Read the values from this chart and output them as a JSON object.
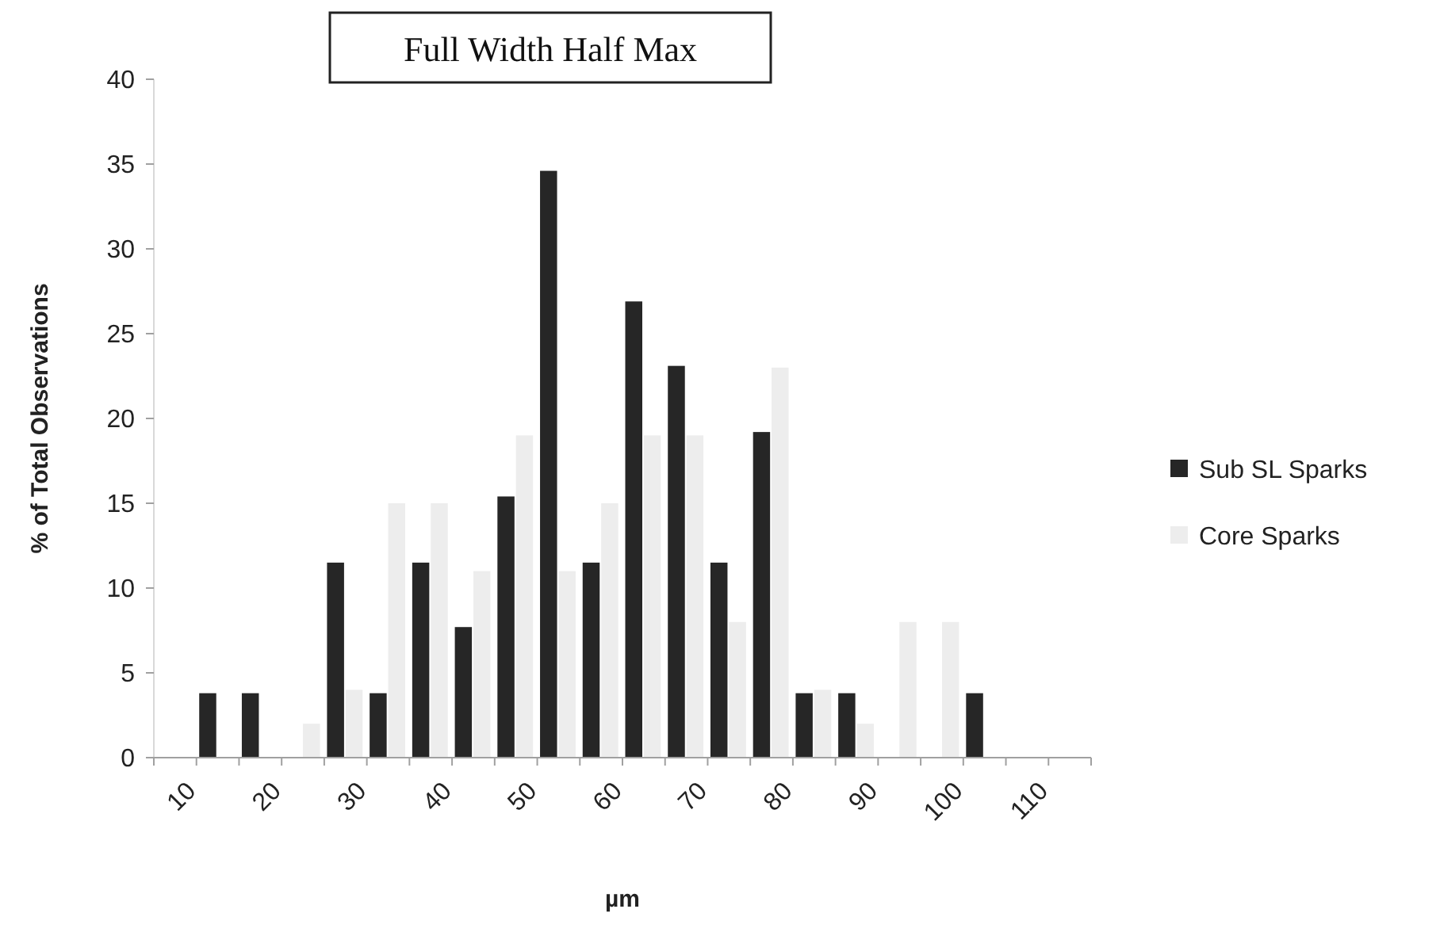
{
  "chart_data": {
    "type": "bar",
    "title": "Full Width Half Max",
    "xlabel": "µm",
    "ylabel": "% of Total Observations",
    "categories": [
      "10",
      null,
      "20",
      null,
      "30",
      null,
      "40",
      null,
      "50",
      null,
      "60",
      null,
      "70",
      null,
      "80",
      null,
      "90",
      null,
      "100",
      null,
      "110",
      null
    ],
    "series": [
      {
        "name": "Sub SL Sparks",
        "color": "#262626",
        "values": [
          0,
          3.8,
          3.8,
          0,
          11.5,
          3.8,
          11.5,
          7.7,
          15.4,
          34.6,
          11.5,
          26.9,
          23.1,
          11.5,
          19.2,
          3.8,
          3.8,
          0,
          0,
          3.8,
          0,
          0
        ]
      },
      {
        "name": "Core Sparks",
        "color": "#ededed",
        "values": [
          0,
          0,
          0,
          2,
          4,
          15,
          15,
          11,
          19,
          11,
          15,
          19,
          19,
          8,
          23,
          4,
          2,
          8,
          8,
          0,
          0,
          0
        ]
      }
    ],
    "ylim": [
      0,
      40
    ],
    "yticks": [
      0,
      5,
      10,
      15,
      20,
      25,
      30,
      35,
      40
    ],
    "grid": false,
    "legend": "right"
  }
}
